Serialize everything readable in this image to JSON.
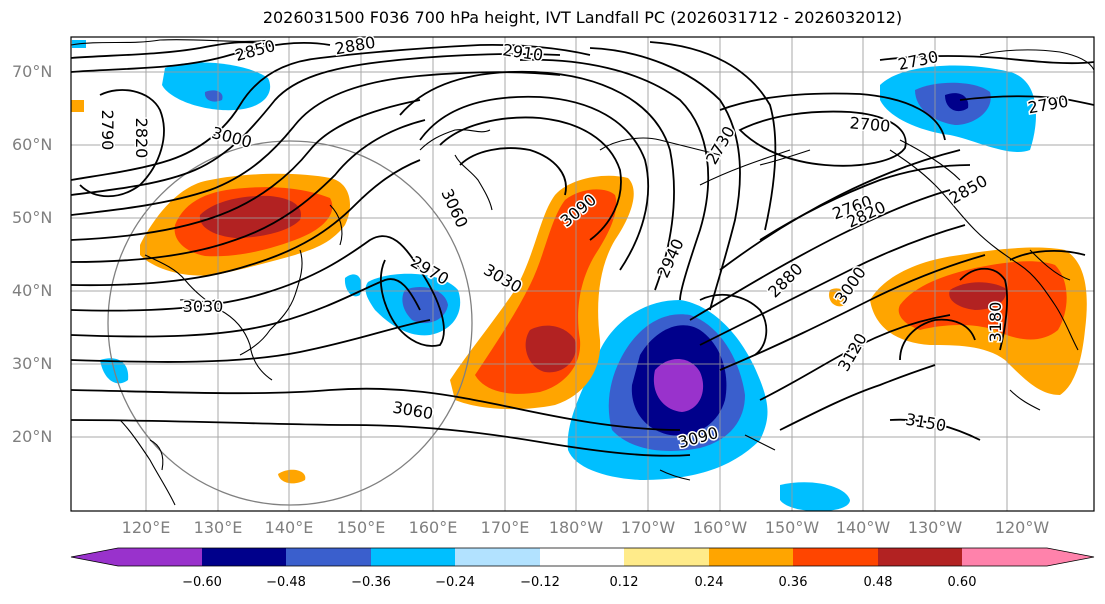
{
  "title": "2026031500 F036 700 hPa height, IVT Landfall PC (2026031712 - 2026032012)",
  "map": {
    "latitude_labels": [
      "70°N",
      "60°N",
      "50°N",
      "40°N",
      "30°N",
      "20°N"
    ],
    "longitude_labels": [
      "120°E",
      "130°E",
      "140°E",
      "150°E",
      "160°E",
      "170°E",
      "180°W",
      "170°W",
      "160°W",
      "150°W",
      "140°W",
      "130°W",
      "120°W"
    ],
    "contour_labels": [
      {
        "text": "2850",
        "rot": -15
      },
      {
        "text": "2880",
        "rot": -10
      },
      {
        "text": "2910",
        "rot": 8
      },
      {
        "text": "2730",
        "rot": -12
      },
      {
        "text": "2790",
        "rot": -10
      },
      {
        "text": "2790",
        "rot": 90
      },
      {
        "text": "2820",
        "rot": 90
      },
      {
        "text": "3000",
        "rot": 15
      },
      {
        "text": "2700",
        "rot": 5
      },
      {
        "text": "2730",
        "rot": -60
      },
      {
        "text": "3060",
        "rot": 65
      },
      {
        "text": "3090",
        "rot": -40
      },
      {
        "text": "2760",
        "rot": -20
      },
      {
        "text": "2820",
        "rot": -25
      },
      {
        "text": "2850",
        "rot": -30
      },
      {
        "text": "2970",
        "rot": 30
      },
      {
        "text": "3030",
        "rot": 30
      },
      {
        "text": "2940",
        "rot": -65
      },
      {
        "text": "2880",
        "rot": -45
      },
      {
        "text": "3000",
        "rot": -55
      },
      {
        "text": "3030",
        "rot": 0
      },
      {
        "text": "3120",
        "rot": -60
      },
      {
        "text": "3180",
        "rot": -90
      },
      {
        "text": "3060",
        "rot": 10
      },
      {
        "text": "3090",
        "rot": -15
      },
      {
        "text": "3150",
        "rot": 10
      }
    ]
  },
  "colorbar": {
    "colors": [
      "#9932cc",
      "#00008b",
      "#3a5fcd",
      "#00bfff",
      "#b2e2ff",
      "#ffffff",
      "#ffeb8a",
      "#ffa500",
      "#ff4500",
      "#b22222",
      "#ff82ab"
    ],
    "ticks": [
      "−0.60",
      "−0.48",
      "−0.36",
      "−0.24",
      "−0.12",
      "0.12",
      "0.24",
      "0.36",
      "0.48",
      "0.60"
    ]
  }
}
